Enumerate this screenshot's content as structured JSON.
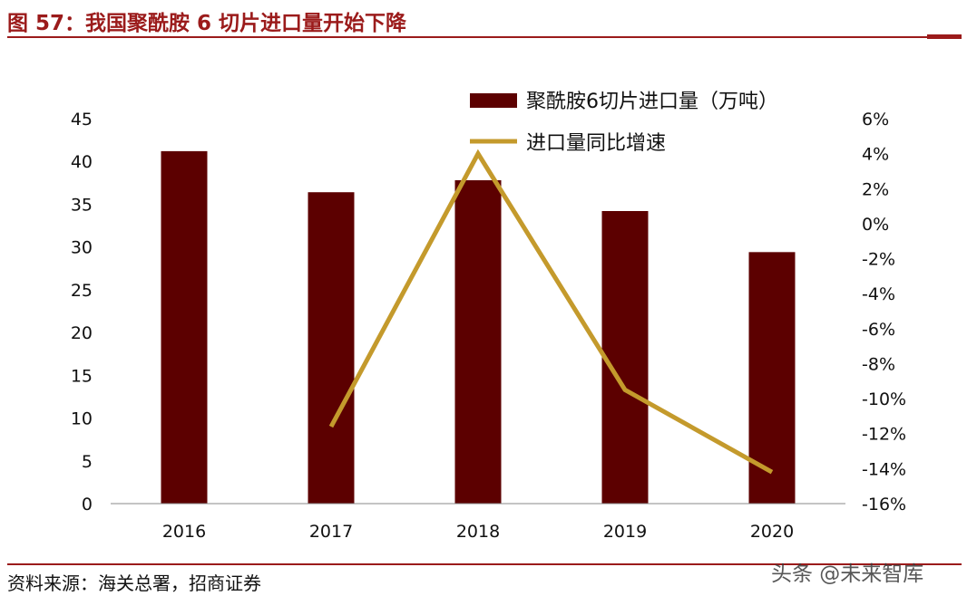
{
  "figure": {
    "title": "图 57：我国聚酰胺 6 切片进口量开始下降",
    "source": "资料来源：海关总署，招商证券",
    "watermark": "头条 @未来智库"
  },
  "colors": {
    "bar": "#5c0000",
    "line": "#c49a2c",
    "title": "#9b1b1b"
  },
  "chart_data": {
    "type": "bar",
    "categories": [
      "2016",
      "2017",
      "2018",
      "2019",
      "2020"
    ],
    "series": [
      {
        "name": "聚酰胺6切片进口量（万吨）",
        "type": "bar",
        "axis": "left",
        "values": [
          41.2,
          36.4,
          37.8,
          34.2,
          29.4
        ]
      },
      {
        "name": "进口量同比增速",
        "type": "line",
        "axis": "right",
        "values": [
          null,
          -11.6,
          4.0,
          -9.5,
          -14.2
        ]
      }
    ],
    "ylim_left": [
      0,
      45
    ],
    "yticks_left": [
      "0",
      "5",
      "10",
      "15",
      "20",
      "25",
      "30",
      "35",
      "40",
      "45"
    ],
    "ylim_right": [
      -16,
      6
    ],
    "yticks_right": [
      "-16%",
      "-14%",
      "-12%",
      "-10%",
      "-8%",
      "-6%",
      "-4%",
      "-2%",
      "0%",
      "2%",
      "4%",
      "6%"
    ],
    "grid": false,
    "legend": "top-right"
  }
}
